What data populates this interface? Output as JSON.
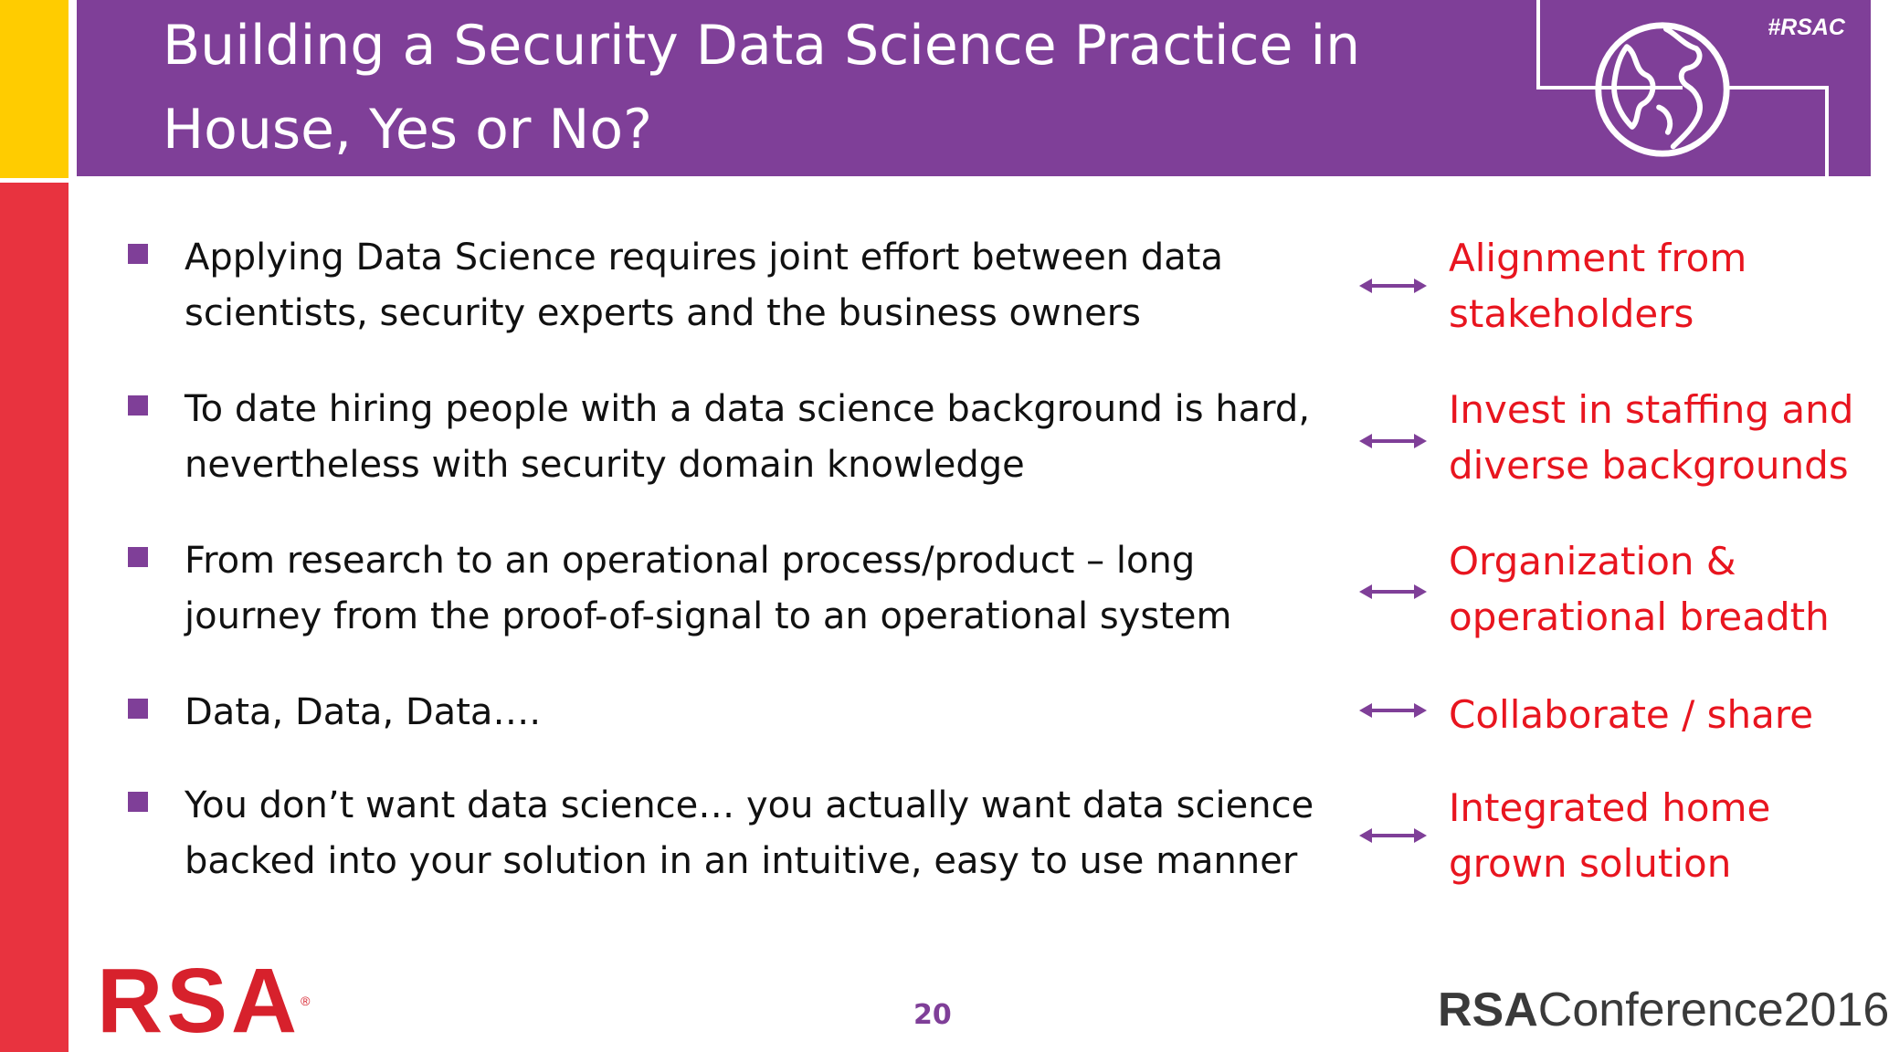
{
  "header": {
    "title_line1": "Building a Security Data Science Practice in",
    "title_line2": "House, Yes or No?",
    "hashtag": "#RSAC",
    "colors": {
      "accent_purple": "#7f3f98",
      "accent_yellow": "#ffcc00",
      "accent_red": "#e8333f"
    },
    "icon": "globe-icon"
  },
  "bullets": [
    {
      "lines": [
        "Applying Data Science requires joint effort between data",
        "scientists, security experts and the business owners"
      ],
      "outcome": [
        "Alignment from",
        "stakeholders"
      ]
    },
    {
      "lines": [
        "To date hiring people with a data science background is hard,",
        "nevertheless with security domain knowledge"
      ],
      "outcome": [
        "Invest in staffing and",
        "diverse backgrounds"
      ]
    },
    {
      "lines": [
        "From research to an operational process/product – long",
        "journey from the proof-of-signal to an operational system"
      ],
      "outcome": [
        "Organization &",
        "operational breadth"
      ]
    },
    {
      "lines": [
        "Data, Data, Data…."
      ],
      "outcome": [
        "Collaborate / share"
      ]
    },
    {
      "lines": [
        "You don’t want data science… you actually want data science",
        "backed into your solution in an intuitive, easy to use manner"
      ],
      "outcome": [
        "Integrated home",
        "grown solution"
      ]
    }
  ],
  "footer": {
    "logo_text": "RSA",
    "logo_reg": "®",
    "page_number": "20",
    "conference_bold": "RSA",
    "conference_rest": "Conference2016"
  }
}
